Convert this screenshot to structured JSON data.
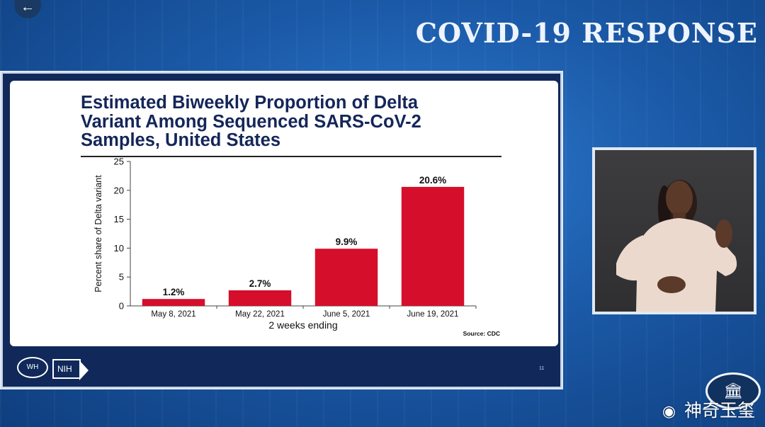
{
  "header": {
    "title": "COVID-19 RESPONSE",
    "back_icon": "←"
  },
  "slide": {
    "title_lines": [
      "Estimated Biweekly Proportion of Delta",
      "Variant Among Sequenced SARS-CoV-2",
      "Samples, United States"
    ],
    "source": "Source: CDC",
    "logos": {
      "white_house": "WH",
      "nih": "NIH"
    },
    "slide_number": "11"
  },
  "chart_data": {
    "type": "bar",
    "categories": [
      "May 8, 2021",
      "May 22, 2021",
      "June 5, 2021",
      "June 19, 2021"
    ],
    "values": [
      1.2,
      2.7,
      9.9,
      20.6
    ],
    "data_labels": [
      "1.2%",
      "2.7%",
      "9.9%",
      "20.6%"
    ],
    "xlabel": "2 weeks ending",
    "ylabel": "Percent share of Delta variant",
    "ylim": [
      0,
      25
    ],
    "yticks": [
      0,
      5,
      10,
      15,
      20,
      25
    ],
    "grid": false,
    "bar_color": "#d50f2b"
  },
  "interpreter": {
    "label": "ASL interpreter video feed"
  },
  "watermark": {
    "text": "神奇玉玺",
    "icon": "weibo-icon"
  },
  "colors": {
    "accent": "#1b5aa8",
    "navy": "#10295a",
    "title_text": "#14265a"
  }
}
